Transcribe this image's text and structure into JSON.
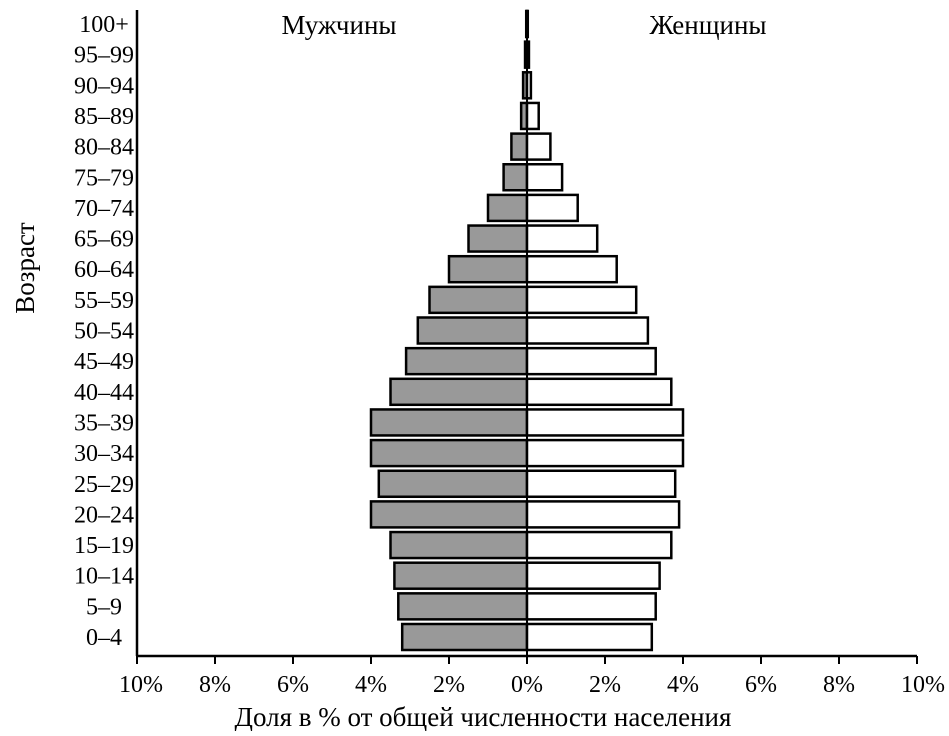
{
  "chart_data": {
    "type": "bar",
    "orientation": "horizontal",
    "layout": "population-pyramid",
    "ylabel": "Возраст",
    "xlabel": "Доля в % от общей численности населения",
    "left_side_label": "Мужчины",
    "right_side_label": "Женщины",
    "xlim": [
      -10,
      10
    ],
    "x_ticks": [
      -10,
      -8,
      -6,
      -4,
      -2,
      0,
      2,
      4,
      6,
      8,
      10
    ],
    "x_tick_labels": [
      "10%",
      "8%",
      "6%",
      "4%",
      "2%",
      "0%",
      "2%",
      "4%",
      "6%",
      "8%",
      "10%"
    ],
    "categories": [
      "0–4",
      "5–9",
      "10–14",
      "15–19",
      "20–24",
      "25–29",
      "30–34",
      "35–39",
      "40–44",
      "45–49",
      "50–54",
      "55–59",
      "60–64",
      "65–69",
      "70–74",
      "75–79",
      "80–84",
      "85–89",
      "90–94",
      "95–99",
      "100+"
    ],
    "series": [
      {
        "name": "Мужчины",
        "color": "#999999",
        "values": [
          3.2,
          3.3,
          3.4,
          3.5,
          4.0,
          3.8,
          4.0,
          4.0,
          3.5,
          3.1,
          2.8,
          2.5,
          2.0,
          1.5,
          1.0,
          0.6,
          0.4,
          0.15,
          0.1,
          0.05,
          0.02
        ]
      },
      {
        "name": "Женщины",
        "color": "#ffffff",
        "values": [
          3.2,
          3.3,
          3.4,
          3.7,
          3.9,
          3.8,
          4.0,
          4.0,
          3.7,
          3.3,
          3.1,
          2.8,
          2.3,
          1.8,
          1.3,
          0.9,
          0.6,
          0.3,
          0.1,
          0.05,
          0.02
        ]
      }
    ],
    "grid": false,
    "legend": "none"
  }
}
